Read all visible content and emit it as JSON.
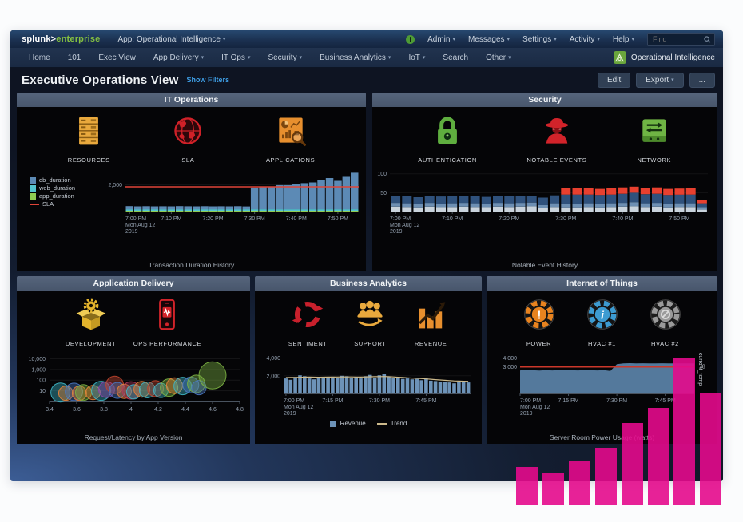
{
  "topbar": {
    "logo_main": "splunk>",
    "logo_sub": "enterprise",
    "app_menu": "App: Operational Intelligence",
    "menus": [
      "Admin",
      "Messages",
      "Settings",
      "Activity",
      "Help"
    ],
    "find_placeholder": "Find",
    "info_badge": "i"
  },
  "navbar": {
    "items": [
      {
        "label": "Home",
        "caret": false
      },
      {
        "label": "101",
        "caret": false
      },
      {
        "label": "Exec View",
        "caret": false
      },
      {
        "label": "App Delivery",
        "caret": true
      },
      {
        "label": "IT Ops",
        "caret": true
      },
      {
        "label": "Security",
        "caret": true
      },
      {
        "label": "Business Analytics",
        "caret": true
      },
      {
        "label": "IoT",
        "caret": true
      },
      {
        "label": "Search",
        "caret": false
      },
      {
        "label": "Other",
        "caret": true
      }
    ],
    "app_badge": "Operational Intelligence"
  },
  "header": {
    "title": "Executive Operations View",
    "show_filters": "Show Filters",
    "edit_label": "Edit",
    "export_label": "Export",
    "more_label": "..."
  },
  "panels": [
    {
      "id": "it-operations",
      "title": "IT Operations",
      "icons": [
        {
          "icon": "server-rack-icon",
          "label": "RESOURCES"
        },
        {
          "icon": "globe-icon",
          "label": "SLA"
        },
        {
          "icon": "app-monitor-icon",
          "label": "APPLICATIONS"
        }
      ],
      "caption": "Transaction Duration History"
    },
    {
      "id": "security",
      "title": "Security",
      "icons": [
        {
          "icon": "padlock-icon",
          "label": "AUTHENTICATION"
        },
        {
          "icon": "spy-icon",
          "label": "NOTABLE EVENTS"
        },
        {
          "icon": "network-switch-icon",
          "label": "NETWORK"
        }
      ],
      "caption": "Notable Event History"
    },
    {
      "id": "application-delivery",
      "title": "Application Delivery",
      "icons": [
        {
          "icon": "package-gear-icon",
          "label": "DEVELOPMENT"
        },
        {
          "icon": "phone-pulse-icon",
          "label": "OPS PERFORMANCE"
        }
      ],
      "caption": "Request/Latency by App Version"
    },
    {
      "id": "business-analytics",
      "title": "Business Analytics",
      "icons": [
        {
          "icon": "refresh-cycle-icon",
          "label": "SENTIMENT"
        },
        {
          "icon": "people-icon",
          "label": "SUPPORT"
        },
        {
          "icon": "bar-growth-icon",
          "label": "REVENUE"
        }
      ]
    },
    {
      "id": "internet-of-things",
      "title": "Internet of Things",
      "icons": [
        {
          "icon": "fan-alert-icon",
          "label": "POWER"
        },
        {
          "icon": "fan-info-icon",
          "label": "HVAC #1"
        },
        {
          "icon": "fan-off-icon",
          "label": "HVAC #2"
        }
      ],
      "caption": "Server Room Power Usage (watts)"
    }
  ],
  "chart_data": [
    {
      "id": "it-operations",
      "type": "bar",
      "stacked": true,
      "title": "Transaction Duration History",
      "x_ticks": [
        "7:00 PM",
        "7:10 PM",
        "7:20 PM",
        "7:30 PM",
        "7:40 PM",
        "7:50 PM"
      ],
      "x_date": [
        "Mon Aug 12",
        "2019"
      ],
      "ylim": [
        0,
        3100
      ],
      "y_ticks": [
        {
          "v": 2000,
          "label": "2,000"
        }
      ],
      "series": [
        {
          "name": "app_duration",
          "color": "#8fcc52",
          "values": [
            60,
            60,
            60,
            60,
            60,
            60,
            60,
            60,
            60,
            60,
            60,
            60,
            60,
            60,
            60,
            60,
            60,
            60,
            60,
            60,
            60,
            60,
            60,
            60,
            60,
            60,
            60,
            60
          ]
        },
        {
          "name": "web_duration",
          "color": "#54c4d0",
          "values": [
            115,
            115,
            115,
            115,
            115,
            115,
            115,
            115,
            115,
            115,
            115,
            115,
            115,
            115,
            115,
            115,
            115,
            115,
            115,
            115,
            115,
            115,
            115,
            115,
            115,
            115,
            115,
            115
          ]
        },
        {
          "name": "db_duration",
          "color": "#5c8ab5",
          "values": [
            230,
            215,
            225,
            210,
            220,
            215,
            230,
            220,
            210,
            225,
            215,
            220,
            210,
            225,
            205,
            1620,
            1700,
            1700,
            1800,
            1800,
            1900,
            1950,
            2000,
            2150,
            2330,
            2120,
            2420,
            2720
          ]
        }
      ],
      "threshold": {
        "name": "SLA",
        "color": "#e04438",
        "value": 1850
      },
      "legend": [
        {
          "label": "db_duration",
          "color": "#5c8ab5",
          "type": "swatch"
        },
        {
          "label": "web_duration",
          "color": "#54c4d0",
          "type": "swatch"
        },
        {
          "label": "app_duration",
          "color": "#8fcc52",
          "type": "swatch"
        },
        {
          "label": "SLA",
          "color": "#e04438",
          "type": "line"
        }
      ],
      "legend_position": "left"
    },
    {
      "id": "security",
      "type": "bar",
      "stacked": true,
      "title": "Notable Event History",
      "x_ticks": [
        "7:00 PM",
        "7:10 PM",
        "7:20 PM",
        "7:30 PM",
        "7:40 PM",
        "7:50 PM"
      ],
      "x_date": [
        "Mon Aug 12",
        "2019"
      ],
      "ylim": [
        0,
        110
      ],
      "y_ticks": [
        {
          "v": 50,
          "label": "50"
        },
        {
          "v": 100,
          "label": "100"
        }
      ],
      "series": [
        {
          "name": "severity-low",
          "color": "#c9d3dc",
          "values": [
            13,
            12,
            11,
            13,
            12,
            12,
            13,
            12,
            12,
            13,
            12,
            13,
            14,
            9,
            12,
            11,
            11,
            12,
            11,
            12,
            13,
            14,
            12,
            13,
            11,
            12,
            12,
            5
          ]
        },
        {
          "name": "severity-medium",
          "color": "#6d8fb3",
          "values": [
            10,
            10,
            9,
            10,
            9,
            10,
            10,
            10,
            9,
            10,
            10,
            10,
            10,
            8,
            10,
            10,
            10,
            10,
            10,
            10,
            10,
            11,
            10,
            10,
            10,
            10,
            10,
            7
          ]
        },
        {
          "name": "severity-high",
          "color": "#2f517c",
          "values": [
            19,
            19,
            18,
            19,
            19,
            19,
            19,
            19,
            18,
            19,
            19,
            19,
            18,
            20,
            21,
            24,
            24,
            23,
            23,
            23,
            24,
            25,
            24,
            24,
            23,
            23,
            23,
            10
          ]
        },
        {
          "name": "severity-critical",
          "color": "#e8402f",
          "values": [
            0,
            0,
            0,
            0,
            0,
            0,
            0,
            0,
            0,
            0,
            0,
            0,
            0,
            0,
            0,
            17,
            18,
            17,
            16,
            17,
            17,
            16,
            17,
            17,
            16,
            16,
            17,
            8
          ]
        }
      ]
    },
    {
      "id": "application-delivery",
      "type": "scatter",
      "title": "Request/Latency by App Version",
      "xlim": [
        3.4,
        4.8
      ],
      "x_ticks": [
        "3.4",
        "3.6",
        "3.8",
        "4",
        "4.2",
        "4.4",
        "4.6",
        "4.8"
      ],
      "y_ticks": [
        {
          "v": 10,
          "label": "10"
        },
        {
          "v": 100,
          "label": "100"
        },
        {
          "v": 1000,
          "label": "1,000"
        },
        {
          "v": 10000,
          "label": "10,000"
        }
      ],
      "y_scale": "log",
      "points": [
        {
          "x": 3.48,
          "y": 7,
          "r": 12,
          "c": "#3fb5c4"
        },
        {
          "x": 3.52,
          "y": 6,
          "r": 9,
          "c": "#e8823a"
        },
        {
          "x": 3.58,
          "y": 8,
          "r": 11,
          "c": "#4a78c2"
        },
        {
          "x": 3.62,
          "y": 6,
          "r": 9,
          "c": "#e8823a"
        },
        {
          "x": 3.65,
          "y": 7,
          "r": 10,
          "c": "#7cb342"
        },
        {
          "x": 3.72,
          "y": 7,
          "r": 9,
          "c": "#e8823a"
        },
        {
          "x": 3.78,
          "y": 10,
          "r": 12,
          "c": "#3fb5c4"
        },
        {
          "x": 3.82,
          "y": 13,
          "r": 10,
          "c": "#8e44ad"
        },
        {
          "x": 3.88,
          "y": 35,
          "r": 11,
          "c": "#c2462f"
        },
        {
          "x": 3.9,
          "y": 11,
          "r": 10,
          "c": "#4a78c2"
        },
        {
          "x": 3.95,
          "y": 9,
          "r": 9,
          "c": "#e8823a"
        },
        {
          "x": 4.0,
          "y": 11,
          "r": 11,
          "c": "#b03a5b"
        },
        {
          "x": 4.02,
          "y": 8,
          "r": 9,
          "c": "#3fb5c4"
        },
        {
          "x": 4.08,
          "y": 14,
          "r": 10,
          "c": "#e8823a"
        },
        {
          "x": 4.12,
          "y": 12,
          "r": 10,
          "c": "#3fb5c4"
        },
        {
          "x": 4.18,
          "y": 16,
          "r": 10,
          "c": "#c2462f"
        },
        {
          "x": 4.22,
          "y": 11,
          "r": 9,
          "c": "#3fb5c4"
        },
        {
          "x": 4.28,
          "y": 20,
          "r": 11,
          "c": "#7cb342"
        },
        {
          "x": 4.32,
          "y": 30,
          "r": 10,
          "c": "#e8823a"
        },
        {
          "x": 4.38,
          "y": 28,
          "r": 11,
          "c": "#3fb5c4"
        },
        {
          "x": 4.44,
          "y": 35,
          "r": 10,
          "c": "#4a78c2"
        },
        {
          "x": 4.48,
          "y": 45,
          "r": 11,
          "c": "#7cb342"
        },
        {
          "x": 4.5,
          "y": 20,
          "r": 9,
          "c": "#4a78c2"
        },
        {
          "x": 4.6,
          "y": 280,
          "r": 17,
          "c": "#7cb342"
        }
      ]
    },
    {
      "id": "business-analytics",
      "type": "bar",
      "x_ticks": [
        "7:00 PM",
        "7:15 PM",
        "7:30 PM",
        "7:45 PM"
      ],
      "x_date": [
        "Mon Aug 12",
        "2019"
      ],
      "ylim": [
        0,
        4500
      ],
      "y_ticks": [
        {
          "v": 2000,
          "label": "2,000"
        },
        {
          "v": 4000,
          "label": "4,000"
        }
      ],
      "bar_color": "#6d93b8",
      "values": [
        1700,
        1550,
        1850,
        2050,
        1950,
        1700,
        1600,
        1750,
        1850,
        1800,
        1900,
        1750,
        2000,
        1950,
        1800,
        1850,
        1700,
        1950,
        2100,
        1800,
        2050,
        2250,
        1900,
        1750,
        1850,
        1650,
        1700,
        1600,
        1650,
        1500,
        1700,
        1450,
        1400,
        1350,
        1300,
        1250,
        1150,
        1300,
        1400,
        1250
      ],
      "trend": [
        1800,
        1805,
        1815,
        1830,
        1845,
        1850,
        1845,
        1840,
        1845,
        1850,
        1855,
        1860,
        1870,
        1875,
        1870,
        1860,
        1855,
        1870,
        1890,
        1900,
        1910,
        1915,
        1900,
        1870,
        1840,
        1805,
        1775,
        1745,
        1715,
        1685,
        1650,
        1610,
        1570,
        1530,
        1490,
        1455,
        1425,
        1405,
        1390,
        1380
      ],
      "trend_color": "#ccb98b",
      "legend": [
        {
          "label": "Revenue",
          "color": "#6d93b8",
          "type": "swatch"
        },
        {
          "label": "Trend",
          "color": "#ccb98b",
          "type": "line"
        }
      ]
    },
    {
      "id": "internet-of-things",
      "type": "area",
      "title": "Server Room Power Usage (watts)",
      "x_ticks": [
        "7:00 PM",
        "7:15 PM",
        "7:30 PM",
        "7:45 PM"
      ],
      "x_date": [
        "Mon Aug 12",
        "2019"
      ],
      "ylim": [
        0,
        4500
      ],
      "y_ticks": [
        {
          "v": 3000,
          "label": "3,000"
        },
        {
          "v": 4000,
          "label": "4,000"
        }
      ],
      "area_color": "#587fa4",
      "values": [
        2600,
        2660,
        2620,
        2580,
        2640,
        2600,
        2650,
        2700,
        2620,
        2600,
        2650,
        2620,
        2600,
        2630,
        2550,
        3300,
        3400,
        3420,
        3400,
        3410,
        3400,
        3395,
        3410,
        3400,
        3400,
        3390,
        3400,
        3400
      ],
      "threshold": {
        "value": 3000,
        "color": "#cc372a"
      },
      "right_axis": {
        "label": "current_temp",
        "tick": "78",
        "tick_value": 3050
      }
    },
    {
      "id": "overlay-bars",
      "type": "bar",
      "color": "#e40a8c",
      "values": [
        48,
        40,
        56,
        72,
        103,
        122,
        184,
        141
      ]
    }
  ]
}
